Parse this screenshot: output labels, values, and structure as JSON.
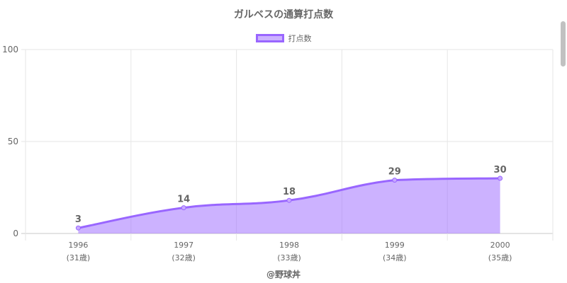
{
  "chart_data": {
    "type": "area",
    "title": "ガルベスの通算打点数",
    "series": [
      {
        "name": "打点数",
        "values": [
          3,
          14,
          18,
          29,
          30
        ]
      }
    ],
    "categories": [
      "1996",
      "1997",
      "1998",
      "1999",
      "2000"
    ],
    "category_sublabels": [
      "(31歳)",
      "(32歳)",
      "(33歳)",
      "(34歳)",
      "(35歳)"
    ],
    "ylim": [
      0,
      100
    ],
    "yticks": [
      0,
      50,
      100
    ],
    "grid": true,
    "legend": "top-center",
    "smooth": true,
    "data_labels": true,
    "colors": {
      "line": "#9966ff",
      "fill": "rgba(153,102,255,0.5)",
      "grid": "#e6e6e6",
      "axis": "#c8c8c8",
      "text": "#666666"
    }
  },
  "credit": "@野球丼"
}
